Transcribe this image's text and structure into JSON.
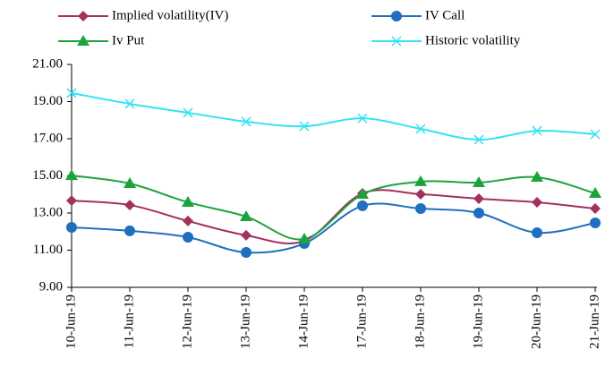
{
  "chart_data": {
    "type": "line",
    "categories": [
      "10-Jun-19",
      "11-Jun-19",
      "12-Jun-19",
      "13-Jun-19",
      "14-Jun-19",
      "17-Jun-19",
      "18-Jun-19",
      "19-Jun-19",
      "20-Jun-19",
      "21-Jun-19"
    ],
    "series": [
      {
        "name": "Implied volatility(IV)",
        "color": "#a3305f",
        "marker": "diamond",
        "values": [
          13.67,
          13.43,
          12.57,
          11.8,
          11.5,
          14.06,
          14.01,
          13.77,
          13.58,
          13.24
        ]
      },
      {
        "name": "IV Call",
        "color": "#1f6fbf",
        "marker": "circle",
        "values": [
          12.23,
          12.04,
          11.7,
          10.88,
          11.36,
          13.39,
          13.24,
          13.0,
          11.94,
          12.47
        ]
      },
      {
        "name": "Iv Put",
        "color": "#1da33c",
        "marker": "triangle",
        "values": [
          15.02,
          14.59,
          13.58,
          12.81,
          11.6,
          14.01,
          14.69,
          14.64,
          14.93,
          14.06
        ]
      },
      {
        "name": "Historic volatility",
        "color": "#33e3f3",
        "marker": "x",
        "values": [
          19.46,
          18.88,
          18.4,
          17.92,
          17.67,
          18.1,
          17.53,
          16.95,
          17.43,
          17.24
        ]
      }
    ],
    "ylim": [
      9,
      21
    ],
    "yticks": [
      {
        "value": 9,
        "label": "9.00"
      },
      {
        "value": 11,
        "label": "11.00"
      },
      {
        "value": 13,
        "label": "13.00"
      },
      {
        "value": 15,
        "label": "15.00"
      },
      {
        "value": 17,
        "label": "17.00"
      },
      {
        "value": 19,
        "label": "19.00"
      },
      {
        "value": 21,
        "label": "21.00"
      }
    ],
    "grid": false,
    "legend": "top"
  }
}
